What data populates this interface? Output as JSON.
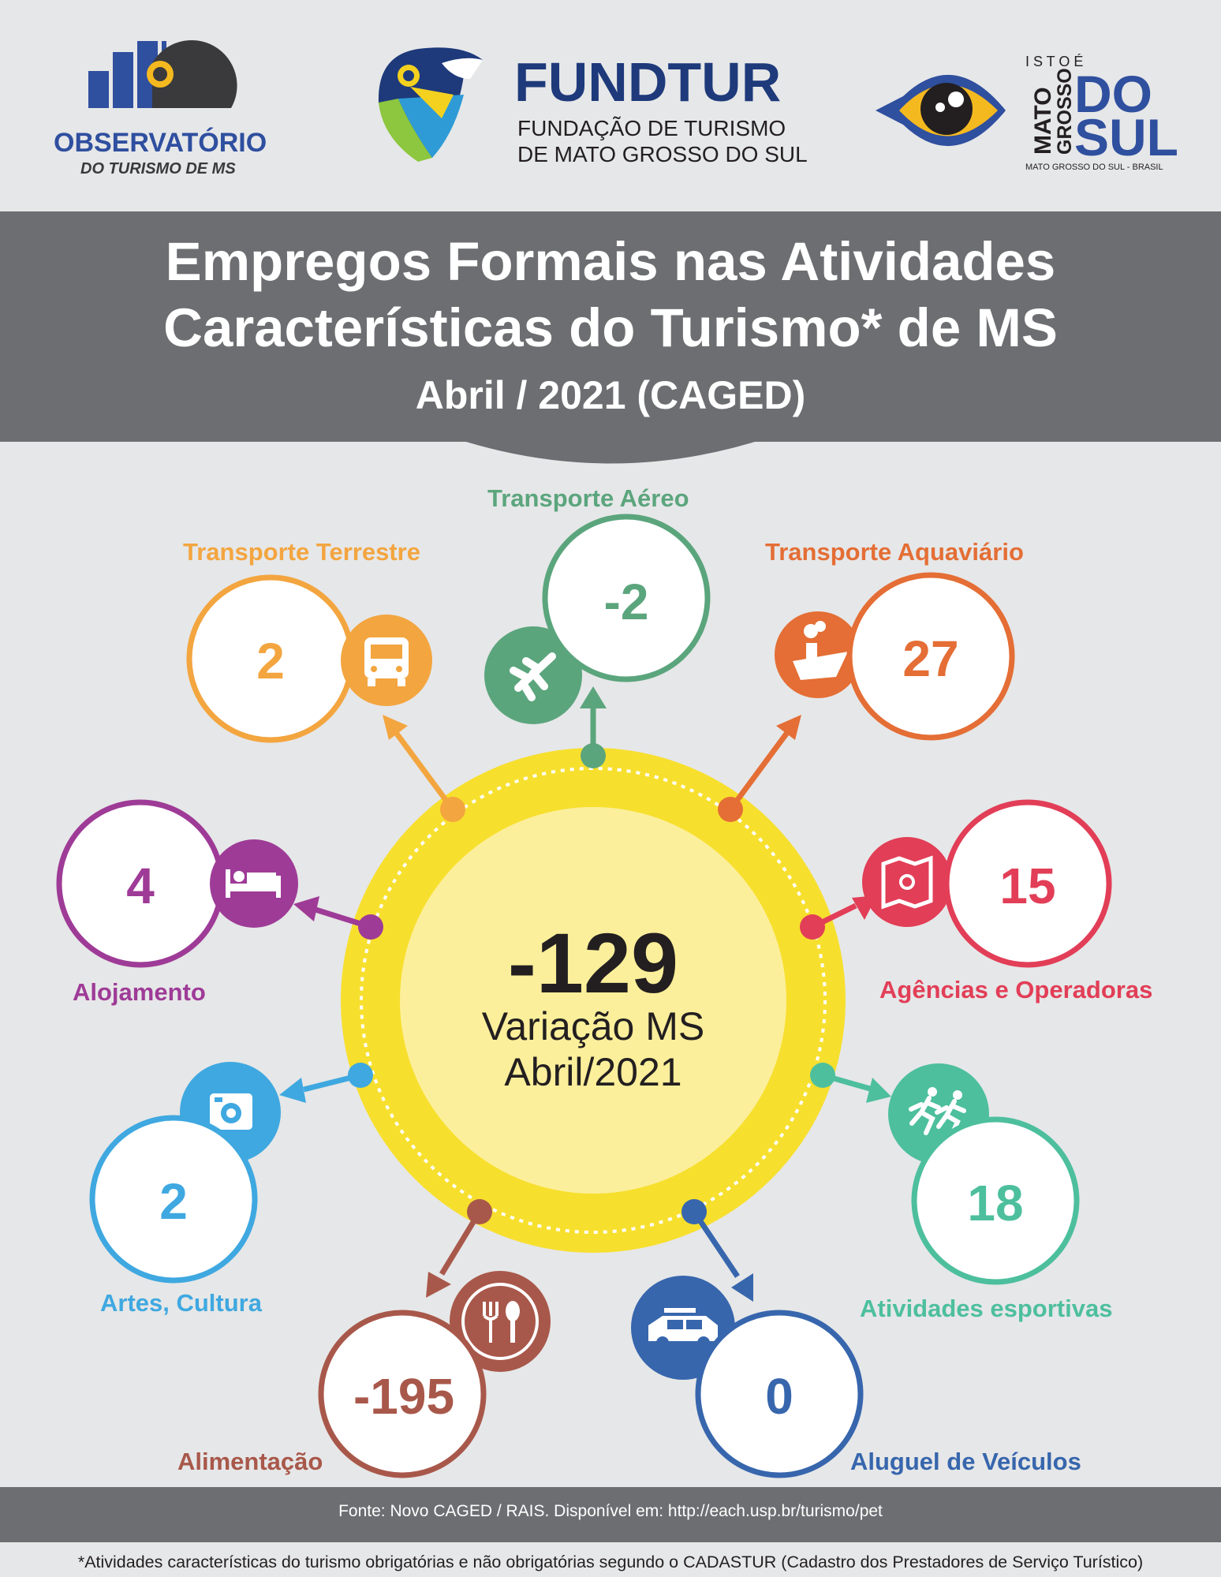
{
  "header": {
    "observatorio_name": "OBSERVATÓRIO",
    "observatorio_sub": "DO TURISMO DE MS",
    "fundtur_name": "FUNDTUR",
    "fundtur_line1": "FUNDAÇÃO DE TURISMO",
    "fundtur_line2": "DE MATO GROSSO DO SUL",
    "ms_top": "I S T O  É",
    "ms_mato": "MATO",
    "ms_grosso": "GROSSO",
    "ms_do": "DO",
    "ms_sul": "SUL",
    "ms_bottom": "MATO GROSSO DO SUL - BRASIL"
  },
  "title": {
    "line1": "Empregos Formais nas Atividades",
    "line2": "Características do Turismo* de MS",
    "line3": "Abril / 2021 (CAGED)"
  },
  "center": {
    "value": "-129",
    "label_line1": "Variação MS",
    "label_line2": "Abril/2021"
  },
  "colors": {
    "background": "#e6e7e8",
    "band": "#6d6e71",
    "hub_outer": "#f7df2e",
    "hub_inner": "#fcef9b",
    "terrestre": "#f3a53f",
    "aereo": "#5ba57d",
    "aquaviario": "#e46e35",
    "alojamento": "#9e3b97",
    "agencias": "#e23e57",
    "artes": "#3fa8e0",
    "esportivas": "#4dbf9d",
    "alimentacao": "#a8584a",
    "veiculos": "#3766ad"
  },
  "categories": [
    {
      "key": "terrestre",
      "label": "Transporte Terrestre",
      "value": "2",
      "icon": "bus-icon"
    },
    {
      "key": "aereo",
      "label": "Transporte Aéreo",
      "value": "-2",
      "icon": "airplane-icon"
    },
    {
      "key": "aquaviario",
      "label": "Transporte Aquaviário",
      "value": "27",
      "icon": "ship-icon"
    },
    {
      "key": "alojamento",
      "label": "Alojamento",
      "value": "4",
      "icon": "bed-icon"
    },
    {
      "key": "agencias",
      "label": "Agências e Operadoras",
      "value": "15",
      "icon": "map-icon"
    },
    {
      "key": "artes",
      "label": "Artes, Cultura",
      "value": "2",
      "icon": "camera-icon"
    },
    {
      "key": "esportivas",
      "label": "Atividades esportivas",
      "value": "18",
      "icon": "runners-icon"
    },
    {
      "key": "alimentacao",
      "label": "Alimentação",
      "value": "-195",
      "icon": "fork-spoon-icon"
    },
    {
      "key": "veiculos",
      "label": "Aluguel de Veículos",
      "value": "0",
      "icon": "car-icon"
    }
  ],
  "footer": {
    "source": "Fonte: Novo CAGED / RAIS. Disponível em: http://each.usp.br/turismo/pet",
    "note": "*Atividades características do turismo obrigatórias e não obrigatórias segundo o CADASTUR (Cadastro dos Prestadores de Serviço Turístico)"
  }
}
